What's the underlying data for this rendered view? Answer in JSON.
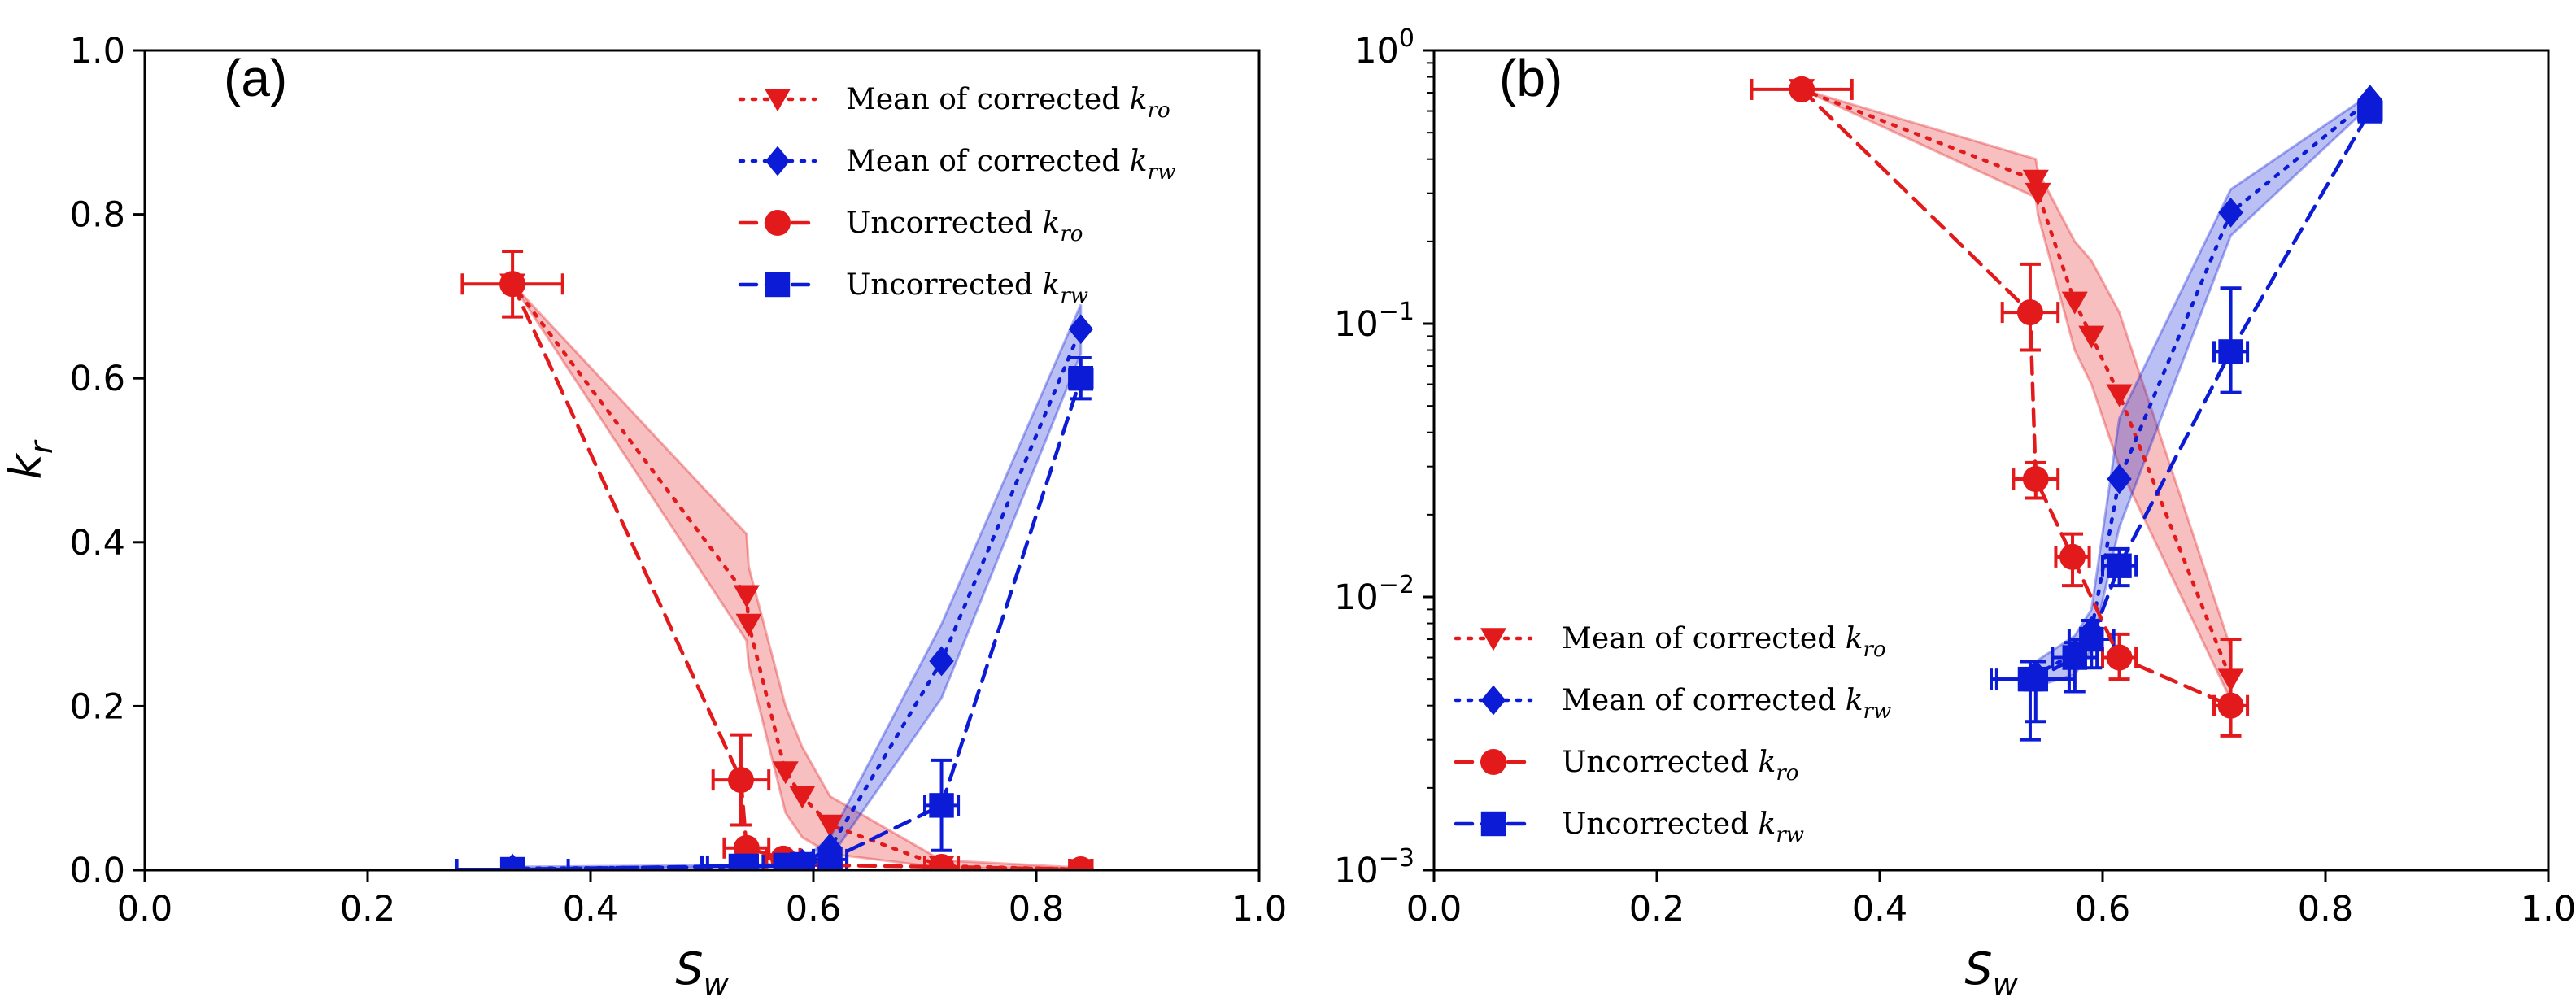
{
  "chart_data": [
    {
      "type": "line",
      "panel_label": "(a)",
      "xlabel_main": "S",
      "xlabel_sub": "w",
      "ylabel_main": "k",
      "ylabel_sub": "r",
      "xlim": [
        0.0,
        1.0
      ],
      "ylim": [
        0.0,
        1.0
      ],
      "yscale": "linear",
      "xticks": [
        "0.0",
        "0.2",
        "0.4",
        "0.6",
        "0.8",
        "1.0"
      ],
      "yticks": [
        "0.0",
        "0.2",
        "0.4",
        "0.6",
        "0.8",
        "1.0"
      ],
      "legend_placement": "top-right",
      "series": [
        {
          "name_main": "Mean of corrected ",
          "name_k": "k",
          "name_sub": "ro",
          "color": "#e31a1c",
          "linestyle": "dotted",
          "marker": "triangle-down",
          "x": [
            0.33,
            0.54,
            0.542,
            0.575,
            0.59,
            0.615,
            0.715,
            0.84
          ],
          "y": [
            0.715,
            0.335,
            0.3,
            0.12,
            0.09,
            0.055,
            0.005,
            0.001
          ],
          "band_low": [
            0.715,
            0.28,
            0.25,
            0.07,
            0.04,
            0.02,
            0.003,
            0.001
          ],
          "band_high": [
            0.715,
            0.41,
            0.37,
            0.2,
            0.15,
            0.09,
            0.012,
            0.003
          ]
        },
        {
          "name_main": "Mean of corrected ",
          "name_k": "k",
          "name_sub": "rw",
          "color": "#0b1bd6",
          "linestyle": "dotted",
          "marker": "diamond",
          "x": [
            0.33,
            0.54,
            0.575,
            0.59,
            0.615,
            0.715,
            0.84
          ],
          "y": [
            0.002,
            0.004,
            0.006,
            0.008,
            0.027,
            0.255,
            0.66
          ],
          "band_low": [
            0.001,
            0.003,
            0.004,
            0.006,
            0.015,
            0.21,
            0.63
          ],
          "band_high": [
            0.004,
            0.006,
            0.008,
            0.012,
            0.04,
            0.3,
            0.69
          ]
        },
        {
          "name_main": "Uncorrected ",
          "name_k": "k",
          "name_sub": "ro",
          "color": "#e31a1c",
          "linestyle": "dashed",
          "marker": "circle",
          "x": [
            0.33,
            0.535,
            0.54,
            0.573,
            0.615,
            0.715,
            0.84
          ],
          "y": [
            0.715,
            0.11,
            0.027,
            0.014,
            0.006,
            0.004,
            0.001
          ],
          "yerr": [
            0.04,
            0.055,
            0.004,
            0.003,
            0.002,
            0.001,
            0.0
          ],
          "xerr": [
            0.045,
            0.025,
            0.02,
            0.015,
            0.015,
            0.015,
            0.01
          ]
        },
        {
          "name_main": "Uncorrected ",
          "name_k": "k",
          "name_sub": "rw",
          "color": "#0b1bd6",
          "linestyle": "dashed",
          "marker": "square",
          "x": [
            0.33,
            0.535,
            0.54,
            0.575,
            0.59,
            0.615,
            0.715,
            0.84
          ],
          "y": [
            0.001,
            0.005,
            0.005,
            0.006,
            0.007,
            0.013,
            0.079,
            0.6
          ],
          "yerr": [
            0.0,
            0.002,
            0.002,
            0.002,
            0.002,
            0.003,
            0.055,
            0.025
          ],
          "xerr": [
            0.05,
            0.035,
            0.035,
            0.02,
            0.02,
            0.015,
            0.015,
            0.01
          ]
        }
      ]
    },
    {
      "type": "line",
      "panel_label": "(b)",
      "xlabel_main": "S",
      "xlabel_sub": "w",
      "ylabel_main": "",
      "ylabel_sub": "",
      "xlim": [
        0.0,
        1.0
      ],
      "ylim": [
        0.001,
        1.0
      ],
      "yscale": "log",
      "xticks": [
        "0.0",
        "0.2",
        "0.4",
        "0.6",
        "0.8",
        "1.0"
      ],
      "yticks": [
        {
          "base": "10",
          "exp": "0"
        },
        {
          "base": "10",
          "exp": "−1"
        },
        {
          "base": "10",
          "exp": "−2"
        },
        {
          "base": "10",
          "exp": "−3"
        }
      ],
      "legend_placement": "bottom-left",
      "series": [
        {
          "name_main": "Mean of corrected ",
          "name_k": "k",
          "name_sub": "ro",
          "color": "#e31a1c",
          "linestyle": "dotted",
          "marker": "triangle-down",
          "x": [
            0.33,
            0.54,
            0.542,
            0.575,
            0.59,
            0.615,
            0.715
          ],
          "y": [
            0.72,
            0.335,
            0.3,
            0.12,
            0.09,
            0.055,
            0.005
          ],
          "band_low": [
            0.72,
            0.29,
            0.25,
            0.08,
            0.06,
            0.03,
            0.0042
          ],
          "band_high": [
            0.72,
            0.4,
            0.36,
            0.2,
            0.17,
            0.11,
            0.0065
          ]
        },
        {
          "name_main": "Mean of corrected ",
          "name_k": "k",
          "name_sub": "rw",
          "color": "#0b1bd6",
          "linestyle": "dotted",
          "marker": "diamond",
          "x": [
            0.54,
            0.575,
            0.59,
            0.615,
            0.715,
            0.84
          ],
          "y": [
            0.0052,
            0.0062,
            0.0075,
            0.027,
            0.255,
            0.66
          ],
          "band_low": [
            0.0047,
            0.0052,
            0.0064,
            0.018,
            0.21,
            0.63
          ],
          "band_high": [
            0.0058,
            0.0072,
            0.009,
            0.045,
            0.31,
            0.69
          ]
        },
        {
          "name_main": "Uncorrected ",
          "name_k": "k",
          "name_sub": "ro",
          "color": "#e31a1c",
          "linestyle": "dashed",
          "marker": "circle",
          "x": [
            0.33,
            0.535,
            0.54,
            0.573,
            0.615,
            0.715
          ],
          "y": [
            0.72,
            0.11,
            0.027,
            0.014,
            0.006,
            0.004
          ],
          "yerr_low": [
            0.72,
            0.08,
            0.023,
            0.011,
            0.005,
            0.0031
          ],
          "yerr_high": [
            0.72,
            0.165,
            0.031,
            0.017,
            0.0073,
            0.007
          ],
          "xerr": [
            0.045,
            0.025,
            0.02,
            0.015,
            0.015,
            0.015
          ]
        },
        {
          "name_main": "Uncorrected ",
          "name_k": "k",
          "name_sub": "rw",
          "color": "#0b1bd6",
          "linestyle": "dashed",
          "marker": "square",
          "x": [
            0.535,
            0.54,
            0.575,
            0.59,
            0.615,
            0.715,
            0.84
          ],
          "y": [
            0.005,
            0.005,
            0.006,
            0.007,
            0.013,
            0.079,
            0.6
          ],
          "yerr_low": [
            0.003,
            0.0035,
            0.0045,
            0.0055,
            0.011,
            0.056,
            0.575
          ],
          "yerr_high": [
            0.0058,
            0.0058,
            0.0068,
            0.0082,
            0.015,
            0.135,
            0.625
          ],
          "xerr": [
            0.035,
            0.035,
            0.02,
            0.02,
            0.015,
            0.015,
            0.01
          ]
        }
      ]
    }
  ]
}
